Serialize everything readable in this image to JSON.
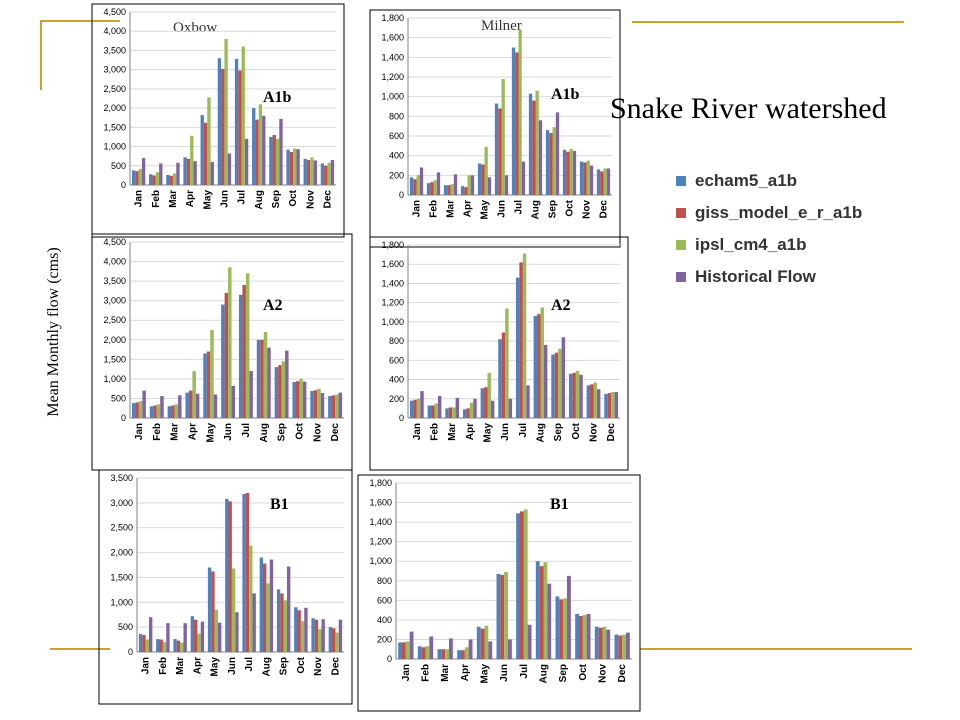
{
  "slide": {
    "title": "Snake River watershed",
    "ylabel": "Mean Monthly flow (cms)",
    "site_left": "Oxbow",
    "site_right": "Milner"
  },
  "legend": [
    {
      "label": "echam5_a1b",
      "color": "#4f81bd"
    },
    {
      "label": "giss_model_e_r_a1b",
      "color": "#c0504d"
    },
    {
      "label": "ipsl_cm4_a1b",
      "color": "#9bbb59"
    },
    {
      "label": "Historical Flow",
      "color": "#8064a2"
    }
  ],
  "chart_data": [
    {
      "type": "bar",
      "site": "Oxbow",
      "scenario": "A1b",
      "categories": [
        "Jan",
        "Feb",
        "Mar",
        "Apr",
        "May",
        "Jun",
        "Jul",
        "Aug",
        "Sep",
        "Oct",
        "Nov",
        "Dec"
      ],
      "ylim": [
        0,
        4500
      ],
      "yticks": [
        "0",
        "500",
        "1,000",
        "1,500",
        "2,000",
        "2,500",
        "3,000",
        "3,500",
        "4,000",
        "4,500"
      ],
      "series": [
        {
          "name": "echam5_a1b",
          "values": [
            380,
            280,
            260,
            720,
            1820,
            3300,
            3280,
            2000,
            1250,
            920,
            680,
            560
          ]
        },
        {
          "name": "giss_model_e_r_a1b",
          "values": [
            360,
            250,
            240,
            680,
            1620,
            3020,
            2980,
            1700,
            1300,
            860,
            650,
            500
          ]
        },
        {
          "name": "ipsl_cm4_a1b",
          "values": [
            420,
            330,
            300,
            1280,
            2280,
            3800,
            3600,
            2100,
            1200,
            950,
            720,
            580
          ]
        },
        {
          "name": "Historical Flow",
          "values": [
            700,
            560,
            580,
            620,
            600,
            820,
            1200,
            1800,
            1720,
            930,
            640,
            650
          ]
        }
      ]
    },
    {
      "type": "bar",
      "site": "Milner",
      "scenario": "A1b",
      "categories": [
        "Jan",
        "Feb",
        "Mar",
        "Apr",
        "May",
        "Jun",
        "Jul",
        "Aug",
        "Sep",
        "Oct",
        "Nov",
        "Dec"
      ],
      "ylim": [
        0,
        1800
      ],
      "yticks": [
        "0",
        "200",
        "400",
        "600",
        "800",
        "1,000",
        "1,200",
        "1,400",
        "1,600",
        "1,800"
      ],
      "series": [
        {
          "name": "echam5_a1b",
          "values": [
            180,
            120,
            100,
            90,
            320,
            930,
            1500,
            1030,
            660,
            460,
            340,
            260
          ]
        },
        {
          "name": "giss_model_e_r_a1b",
          "values": [
            160,
            130,
            100,
            80,
            310,
            880,
            1450,
            960,
            630,
            440,
            330,
            240
          ]
        },
        {
          "name": "ipsl_cm4_a1b",
          "values": [
            200,
            150,
            110,
            200,
            490,
            1180,
            1680,
            1060,
            690,
            470,
            350,
            270
          ]
        },
        {
          "name": "Historical Flow",
          "values": [
            280,
            230,
            210,
            200,
            180,
            200,
            340,
            760,
            840,
            450,
            300,
            270
          ]
        }
      ]
    },
    {
      "type": "bar",
      "site": "Oxbow",
      "scenario": "A2",
      "categories": [
        "Jan",
        "Feb",
        "Mar",
        "Apr",
        "May",
        "Jun",
        "Jul",
        "Aug",
        "Sep",
        "Oct",
        "Nov",
        "Dec"
      ],
      "ylim": [
        0,
        4500
      ],
      "yticks": [
        "0",
        "500",
        "1,000",
        "1,500",
        "2,000",
        "2,500",
        "3,000",
        "3,500",
        "4,000",
        "4,500"
      ],
      "series": [
        {
          "name": "echam5_a1b",
          "values": [
            380,
            300,
            300,
            650,
            1650,
            2900,
            3150,
            2000,
            1300,
            920,
            690,
            560
          ]
        },
        {
          "name": "giss_model_e_r_a1b",
          "values": [
            400,
            320,
            320,
            700,
            1700,
            3200,
            3400,
            2000,
            1350,
            940,
            710,
            580
          ]
        },
        {
          "name": "ipsl_cm4_a1b",
          "values": [
            430,
            350,
            350,
            1200,
            2250,
            3850,
            3700,
            2200,
            1450,
            1000,
            750,
            600
          ]
        },
        {
          "name": "Historical Flow",
          "values": [
            700,
            560,
            580,
            620,
            600,
            820,
            1200,
            1800,
            1720,
            930,
            640,
            650
          ]
        }
      ]
    },
    {
      "type": "bar",
      "site": "Milner",
      "scenario": "A2",
      "categories": [
        "Jan",
        "Feb",
        "Mar",
        "Apr",
        "May",
        "Jun",
        "Jul",
        "Aug",
        "Sep",
        "Oct",
        "Nov",
        "Dec"
      ],
      "ylim": [
        0,
        1800
      ],
      "yticks": [
        "0",
        "200",
        "400",
        "600",
        "800",
        "1,000",
        "1,200",
        "1,400",
        "1,600",
        "1,800"
      ],
      "series": [
        {
          "name": "echam5_a1b",
          "values": [
            180,
            130,
            100,
            90,
            310,
            820,
            1460,
            1060,
            660,
            460,
            340,
            250
          ]
        },
        {
          "name": "giss_model_e_r_a1b",
          "values": [
            190,
            130,
            110,
            100,
            320,
            890,
            1620,
            1080,
            680,
            470,
            350,
            260
          ]
        },
        {
          "name": "ipsl_cm4_a1b",
          "values": [
            200,
            150,
            110,
            160,
            470,
            1140,
            1710,
            1150,
            720,
            490,
            370,
            270
          ]
        },
        {
          "name": "Historical Flow",
          "values": [
            280,
            230,
            210,
            200,
            180,
            200,
            340,
            760,
            840,
            450,
            300,
            270
          ]
        }
      ]
    },
    {
      "type": "bar",
      "site": "Oxbow",
      "scenario": "B1",
      "categories": [
        "Jan",
        "Feb",
        "Mar",
        "Apr",
        "May",
        "Jun",
        "Jul",
        "Aug",
        "Sep",
        "Oct",
        "Nov",
        "Dec"
      ],
      "ylim": [
        0,
        3500
      ],
      "yticks": [
        "0",
        "500",
        "1,000",
        "1,500",
        "2,000",
        "2,500",
        "3,000",
        "3,500"
      ],
      "series": [
        {
          "name": "echam5_a1b",
          "values": [
            360,
            260,
            260,
            720,
            1700,
            3080,
            3180,
            1900,
            1260,
            900,
            680,
            500
          ]
        },
        {
          "name": "giss_model_e_r_a1b",
          "values": [
            340,
            250,
            230,
            650,
            1620,
            3030,
            3200,
            1780,
            1180,
            840,
            650,
            480
          ]
        },
        {
          "name": "ipsl_cm4_a1b",
          "values": [
            250,
            200,
            190,
            370,
            850,
            1680,
            2140,
            1380,
            1040,
            620,
            460,
            390
          ]
        },
        {
          "name": "Historical Flow",
          "values": [
            700,
            580,
            580,
            610,
            590,
            800,
            1180,
            1860,
            1720,
            890,
            660,
            650
          ]
        }
      ]
    },
    {
      "type": "bar",
      "site": "Milner",
      "scenario": "B1",
      "categories": [
        "Jan",
        "Feb",
        "Mar",
        "Apr",
        "May",
        "Jun",
        "Jul",
        "Aug",
        "Sep",
        "Oct",
        "Nov",
        "Dec"
      ],
      "ylim": [
        0,
        1800
      ],
      "yticks": [
        "0",
        "200",
        "400",
        "600",
        "800",
        "1,000",
        "1,200",
        "1,400",
        "1,600",
        "1,800"
      ],
      "series": [
        {
          "name": "echam5_a1b",
          "values": [
            170,
            130,
            100,
            90,
            330,
            870,
            1490,
            1000,
            640,
            460,
            330,
            250
          ]
        },
        {
          "name": "giss_model_e_r_a1b",
          "values": [
            170,
            120,
            100,
            90,
            310,
            860,
            1510,
            950,
            610,
            440,
            320,
            240
          ]
        },
        {
          "name": "ipsl_cm4_a1b",
          "values": [
            180,
            130,
            100,
            120,
            340,
            890,
            1530,
            990,
            620,
            450,
            330,
            250
          ]
        },
        {
          "name": "Historical Flow",
          "values": [
            280,
            230,
            210,
            200,
            180,
            200,
            350,
            770,
            850,
            460,
            300,
            270
          ]
        }
      ]
    }
  ]
}
